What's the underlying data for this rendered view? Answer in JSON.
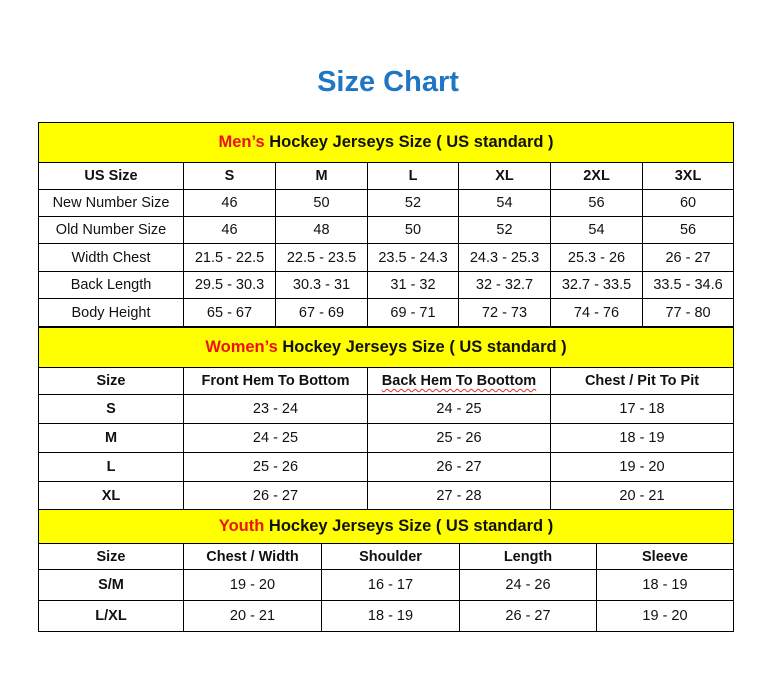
{
  "title": "Size Chart",
  "accent_color": "#ee1111",
  "title_color": "#1f77c4",
  "header_bg": "#ffff00",
  "sections": [
    {
      "id": "men",
      "title_accent": "Men’s",
      "title_rest": " Hockey Jerseys Size ( US standard )",
      "columns": [
        "US Size",
        "S",
        "M",
        "L",
        "XL",
        "2XL",
        "3XL"
      ],
      "rows": [
        [
          "New Number Size",
          "46",
          "50",
          "52",
          "54",
          "56",
          "60"
        ],
        [
          "Old Number Size",
          "46",
          "48",
          "50",
          "52",
          "54",
          "56"
        ],
        [
          "Width Chest",
          "21.5 - 22.5",
          "22.5 - 23.5",
          "23.5 - 24.3",
          "24.3 - 25.3",
          "25.3 - 26",
          "26 - 27"
        ],
        [
          "Back Length",
          "29.5 - 30.3",
          "30.3 - 31",
          "31 - 32",
          "32 - 32.7",
          "32.7 - 33.5",
          "33.5 - 34.6"
        ],
        [
          "Body Height",
          "65 - 67",
          "67 - 69",
          "69 - 71",
          "72 - 73",
          "74 - 76",
          "77 - 80"
        ]
      ]
    },
    {
      "id": "women",
      "title_accent": "Women’s",
      "title_rest": " Hockey Jerseys Size ( US standard )",
      "columns": [
        "Size",
        "Front Hem To Bottom",
        "Back Hem To Boottom",
        "Chest / Pit To Pit"
      ],
      "rows": [
        [
          "S",
          "23 - 24",
          "24 - 25",
          "17 - 18"
        ],
        [
          "M",
          "24 - 25",
          "25 - 26",
          "18 - 19"
        ],
        [
          "L",
          "25 - 26",
          "26 - 27",
          "19 - 20"
        ],
        [
          "XL",
          "26 - 27",
          "27 - 28",
          "20 - 21"
        ]
      ]
    },
    {
      "id": "youth",
      "title_accent": "Youth",
      "title_rest": " Hockey Jerseys Size ( US standard )",
      "columns": [
        "Size",
        "Chest / Width",
        "Shoulder",
        "Length",
        "Sleeve"
      ],
      "rows": [
        [
          "S/M",
          "19 - 20",
          "16 - 17",
          "24 - 26",
          "18 - 19"
        ],
        [
          "L/XL",
          "20 - 21",
          "18 - 19",
          "26 - 27",
          "19 - 20"
        ]
      ]
    }
  ]
}
